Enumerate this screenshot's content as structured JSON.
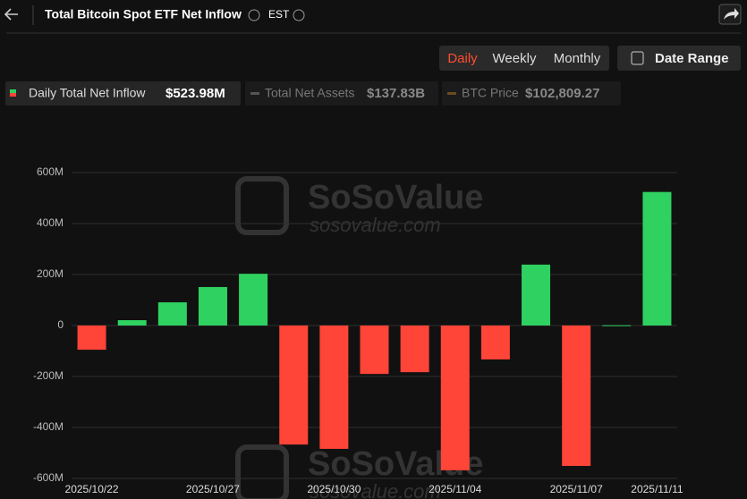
{
  "header": {
    "title": "Total Bitcoin Spot ETF Net Inflow",
    "timezone": "EST"
  },
  "controls": {
    "periods": [
      "Daily",
      "Weekly",
      "Monthly"
    ],
    "active_period": "Daily",
    "date_range": "Date Range"
  },
  "summary": [
    {
      "name": "Daily Total Net Inflow",
      "value": "$523.98M"
    },
    {
      "name": "Total Net Assets",
      "value": "$137.83B"
    },
    {
      "name": "BTC Price",
      "value": "$102,809.27"
    }
  ],
  "watermark": {
    "brand": "SoSoValue",
    "url": "sosovalue.com"
  },
  "chart_data": {
    "type": "bar",
    "categories": [
      "2025/10/22",
      null,
      null,
      "2025/10/27",
      null,
      null,
      "2025/10/30",
      null,
      null,
      "2025/11/04",
      null,
      null,
      "2025/11/07",
      null,
      "2025/11/11"
    ],
    "series": [
      {
        "name": "Daily Total Net Inflow",
        "color": "#2fd160",
        "negative_color": "#ff4438",
        "values": [
          -95,
          21,
          91,
          151,
          203,
          -467,
          -484,
          -190,
          -183,
          -568,
          -133,
          239,
          -551,
          1,
          523.98
        ]
      }
    ],
    "ylim": [
      -600,
      600
    ],
    "yticks": [
      {
        "value": -600,
        "label": "-600M"
      },
      {
        "value": -400,
        "label": "-400M"
      },
      {
        "value": -200,
        "label": "-200M"
      },
      0,
      {
        "value": 200,
        "label": "200M"
      },
      {
        "value": 400,
        "label": "400M"
      },
      {
        "value": 600,
        "label": "600M"
      }
    ],
    "grid": true
  }
}
